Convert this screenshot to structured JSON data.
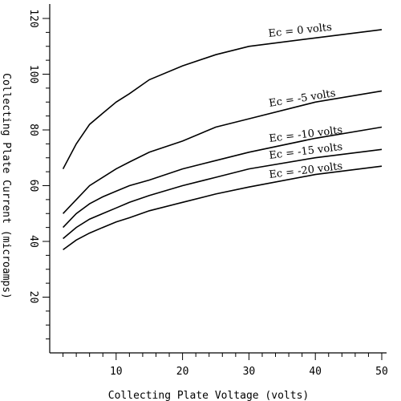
{
  "chart_data": {
    "type": "line",
    "title": "",
    "xlabel": "Collecting Plate Voltage (volts)",
    "ylabel": "Collecting Plate Current (microamps)",
    "xlim": [
      0,
      50
    ],
    "ylim": [
      0,
      130
    ],
    "x_ticks": [
      10,
      20,
      30,
      40,
      50
    ],
    "y_ticks": [
      20,
      40,
      60,
      80,
      100,
      120
    ],
    "grid": false,
    "x": [
      2,
      4,
      6,
      8,
      10,
      12,
      15,
      20,
      25,
      30,
      40,
      50
    ],
    "series": [
      {
        "name": "Ec = 0 volts",
        "values": [
          66,
          75,
          82,
          86,
          90,
          93,
          98,
          103,
          107,
          110,
          113,
          116
        ]
      },
      {
        "name": "Ec = -5 volts",
        "values": [
          50,
          55,
          60,
          63,
          66,
          68.5,
          72,
          76,
          81,
          84,
          90,
          94
        ]
      },
      {
        "name": "Ec = -10 volts",
        "values": [
          45,
          50,
          53.5,
          56,
          58,
          60,
          62,
          66,
          69,
          72,
          77,
          81
        ]
      },
      {
        "name": "Ec = -15 volts",
        "values": [
          41,
          45,
          48,
          50,
          52,
          54,
          56.5,
          60,
          63,
          66,
          70,
          73
        ]
      },
      {
        "name": "Ec = -20 volts",
        "values": [
          37,
          40.5,
          43,
          45,
          47,
          48.5,
          51,
          54,
          57,
          59.5,
          64,
          67
        ]
      }
    ]
  }
}
